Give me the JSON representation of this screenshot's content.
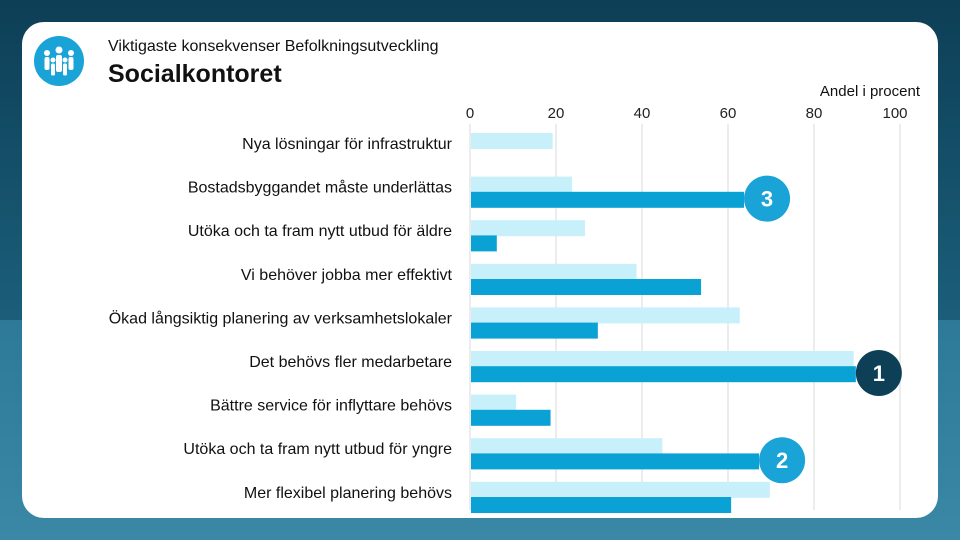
{
  "header": {
    "subtitle": "Viktigaste konsekvenser Befolkningsutveckling",
    "title": "Socialkontoret"
  },
  "logo": {
    "icon": "people-group-icon"
  },
  "chart_data": {
    "type": "bar",
    "orientation": "horizontal",
    "unit_label": "Andel i procent",
    "xlim": [
      0,
      100
    ],
    "xticks": [
      0,
      20,
      40,
      60,
      80,
      100
    ],
    "grid": true,
    "categories": [
      "Nya lösningar för infrastruktur",
      "Bostadsbyggandet måste underlättas",
      "Utöka och ta fram nytt utbud för äldre",
      "Vi behöver jobba mer effektivt",
      "Ökad långsiktig planering av verksamhetslokaler",
      "Det behövs fler medarbetare",
      "Bättre service för inflyttare behövs",
      "Utöka och ta fram nytt utbud för yngre",
      "Mer flexibel planering behövs"
    ],
    "series": [
      {
        "name": "series-light",
        "color": "#c8f0fb",
        "values": [
          19,
          23.5,
          26.5,
          38.5,
          62.5,
          89,
          10.5,
          44.5,
          69.5
        ]
      },
      {
        "name": "series-dark",
        "color": "#0aa2d4",
        "values": [
          0,
          63.5,
          6,
          53.5,
          29.5,
          89.5,
          18.5,
          67,
          60.5
        ]
      }
    ],
    "annotations": [
      {
        "label": "3",
        "category_index": 1,
        "bg": "#1aa3d6",
        "fg": "#ffffff"
      },
      {
        "label": "1",
        "category_index": 5,
        "bg": "#0d3f56",
        "fg": "#ffffff"
      },
      {
        "label": "2",
        "category_index": 7,
        "bg": "#1aa3d6",
        "fg": "#ffffff"
      }
    ]
  }
}
